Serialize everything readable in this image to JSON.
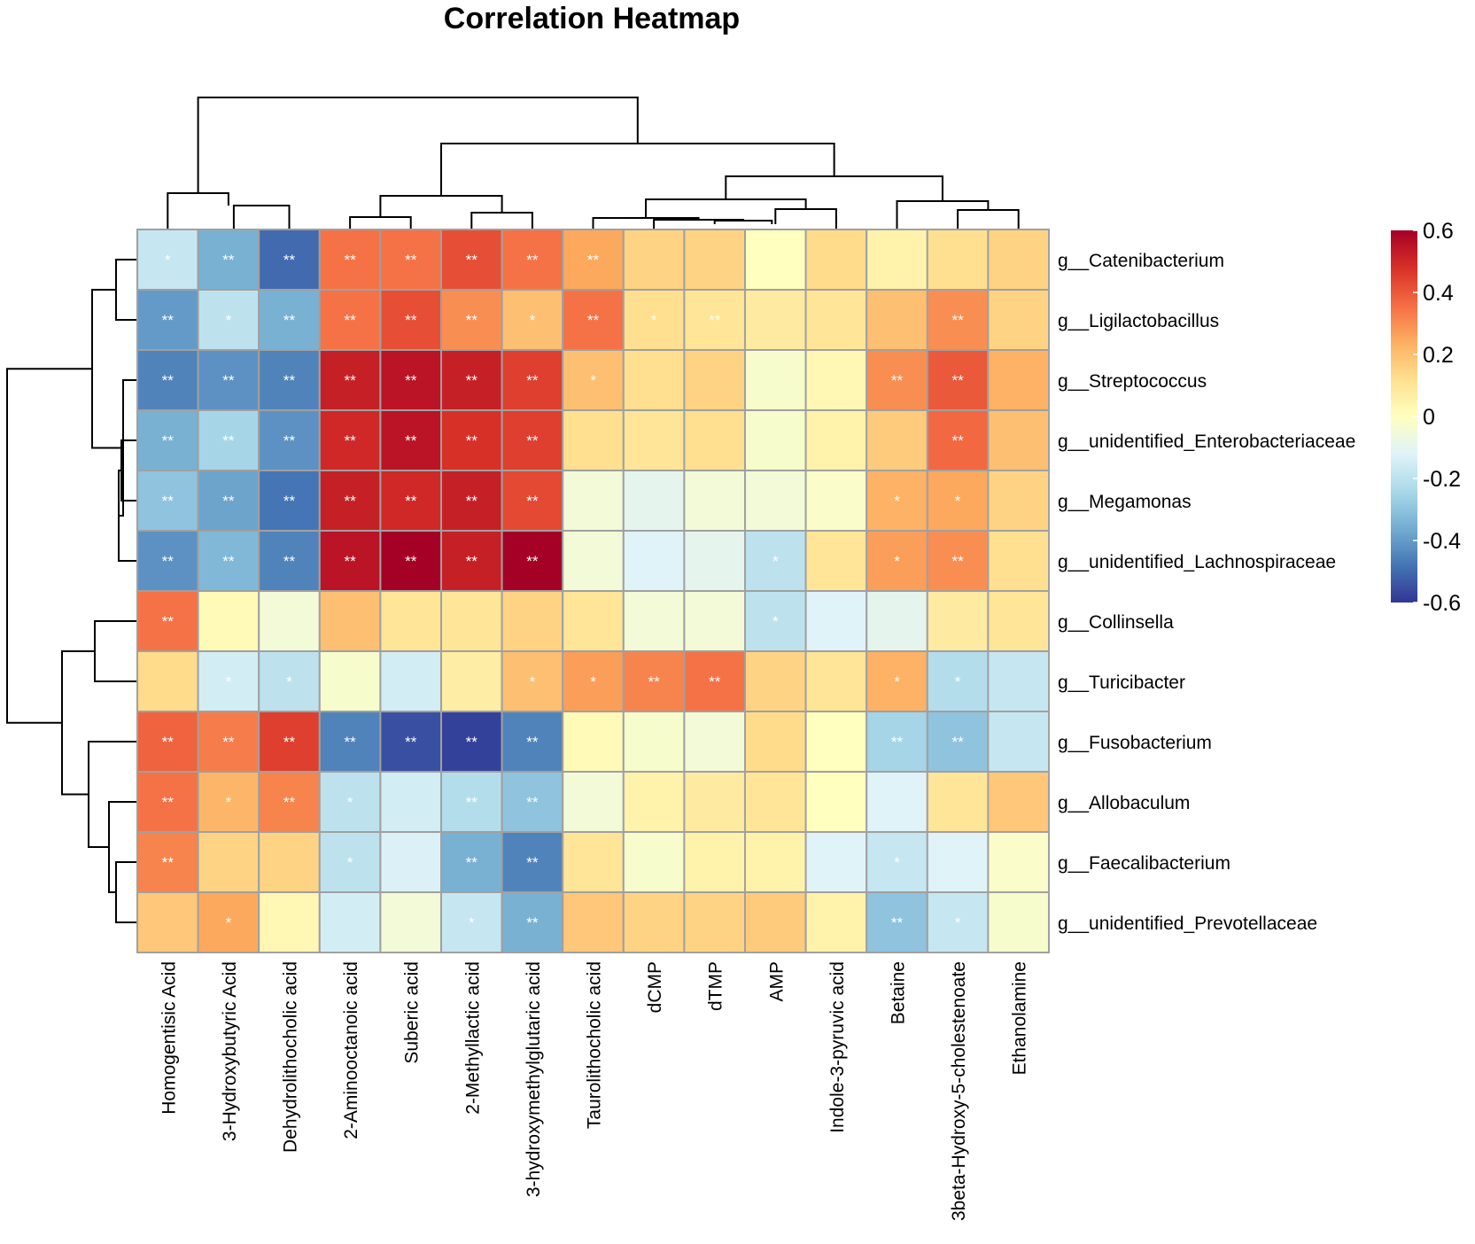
{
  "chart_data": {
    "type": "heatmap",
    "title": "Correlation Heatmap",
    "columns": [
      "Homogentisic Acid",
      "3-Hydroxybutyric Acid",
      "Dehydrolithocholic acid",
      "2-Aminooctanoic acid",
      "Suberic acid",
      "2-Methyllactic acid",
      "3-hydroxymethylglutaric acid",
      "Taurolithocholic acid",
      "dCMP",
      "dTMP",
      "AMP",
      "Indole-3-pyruvic acid",
      "Betaine",
      "3beta-Hydroxy-5-cholestenoate",
      "Ethanolamine"
    ],
    "rows": [
      "g__Catenibacterium",
      "g__Ligilactobacillus",
      "g__Streptococcus",
      "g__unidentified_Enterobacteriaceae",
      "g__Megamonas",
      "g__unidentified_Lachnospiraceae",
      "g__Collinsella",
      "g__Turicibacter",
      "g__Fusobacterium",
      "g__Allobaculum",
      "g__Faecalibacterium",
      "g__unidentified_Prevotellaceae"
    ],
    "values": [
      [
        -0.18,
        -0.35,
        -0.5,
        0.35,
        0.35,
        0.42,
        0.35,
        0.25,
        0.15,
        0.15,
        0.0,
        0.13,
        0.05,
        0.12,
        0.15
      ],
      [
        -0.4,
        -0.2,
        -0.35,
        0.35,
        0.42,
        0.3,
        0.2,
        0.35,
        0.12,
        0.1,
        0.08,
        0.1,
        0.2,
        0.3,
        0.15
      ],
      [
        -0.45,
        -0.42,
        -0.45,
        0.52,
        0.55,
        0.52,
        0.45,
        0.2,
        0.12,
        0.15,
        -0.03,
        0.03,
        0.3,
        0.4,
        0.23
      ],
      [
        -0.35,
        -0.25,
        -0.42,
        0.5,
        0.55,
        0.48,
        0.45,
        0.12,
        0.1,
        0.12,
        -0.03,
        0.05,
        0.17,
        0.37,
        0.2
      ],
      [
        -0.3,
        -0.38,
        -0.48,
        0.52,
        0.5,
        0.52,
        0.43,
        -0.05,
        -0.1,
        -0.05,
        -0.05,
        -0.02,
        0.23,
        0.25,
        0.15
      ],
      [
        -0.42,
        -0.33,
        -0.45,
        0.55,
        0.6,
        0.52,
        0.6,
        -0.05,
        -0.12,
        -0.1,
        -0.2,
        0.1,
        0.27,
        0.3,
        0.12
      ],
      [
        0.35,
        0.02,
        -0.05,
        0.2,
        0.1,
        0.1,
        0.15,
        0.1,
        -0.05,
        -0.05,
        -0.2,
        -0.12,
        -0.1,
        0.08,
        0.1
      ],
      [
        0.13,
        -0.15,
        -0.2,
        -0.03,
        -0.15,
        0.07,
        0.2,
        0.27,
        0.32,
        0.35,
        0.15,
        0.1,
        0.23,
        -0.22,
        -0.18
      ],
      [
        0.38,
        0.33,
        0.45,
        -0.45,
        -0.55,
        -0.58,
        -0.45,
        0.02,
        -0.03,
        -0.05,
        0.13,
        0.0,
        -0.25,
        -0.3,
        -0.18
      ],
      [
        0.35,
        0.22,
        0.32,
        -0.2,
        -0.15,
        -0.22,
        -0.3,
        -0.05,
        0.05,
        0.08,
        0.1,
        0.0,
        -0.12,
        0.1,
        0.18
      ],
      [
        0.32,
        0.15,
        0.15,
        -0.2,
        -0.13,
        -0.35,
        -0.45,
        0.1,
        -0.03,
        0.05,
        0.05,
        -0.12,
        -0.18,
        -0.12,
        -0.02
      ],
      [
        0.18,
        0.25,
        0.03,
        -0.15,
        -0.05,
        -0.18,
        -0.35,
        0.18,
        0.15,
        0.15,
        0.17,
        0.05,
        -0.3,
        -0.18,
        -0.03
      ]
    ],
    "significance": [
      [
        "*",
        "**",
        "**",
        "**",
        "**",
        "**",
        "**",
        "**",
        "",
        "",
        "",
        "",
        "",
        "",
        ""
      ],
      [
        "**",
        "*",
        "**",
        "**",
        "**",
        "**",
        "*",
        "**",
        "*",
        "**",
        "",
        "",
        "",
        "**",
        ""
      ],
      [
        "**",
        "**",
        "**",
        "**",
        "**",
        "**",
        "**",
        "*",
        "",
        "",
        "",
        "",
        "**",
        "**",
        ""
      ],
      [
        "**",
        "**",
        "**",
        "**",
        "**",
        "**",
        "**",
        "",
        "",
        "",
        "",
        "",
        "",
        "**",
        ""
      ],
      [
        "**",
        "**",
        "**",
        "**",
        "**",
        "**",
        "**",
        "",
        "",
        "",
        "",
        "",
        "*",
        "*",
        ""
      ],
      [
        "**",
        "**",
        "**",
        "**",
        "**",
        "**",
        "**",
        "",
        "",
        "",
        "*",
        "",
        "*",
        "**",
        ""
      ],
      [
        "**",
        "",
        "",
        "",
        "",
        "",
        "",
        "",
        "",
        "",
        "*",
        "",
        "",
        "",
        ""
      ],
      [
        "",
        "*",
        "*",
        "",
        "",
        "",
        "*",
        "*",
        "**",
        "**",
        "",
        "",
        "*",
        "*",
        ""
      ],
      [
        "**",
        "**",
        "**",
        "**",
        "**",
        "**",
        "**",
        "",
        "",
        "",
        "",
        "",
        "**",
        "**",
        ""
      ],
      [
        "**",
        "*",
        "**",
        "*",
        "",
        "**",
        "**",
        "",
        "",
        "",
        "",
        "",
        "",
        "",
        ""
      ],
      [
        "**",
        "",
        "",
        "*",
        "",
        "**",
        "**",
        "",
        "",
        "",
        "",
        "",
        "*",
        "",
        ""
      ],
      [
        "",
        "*",
        "",
        "",
        "",
        "*",
        "**",
        "",
        "",
        "",
        "",
        "",
        "**",
        "*",
        ""
      ]
    ],
    "colorbar": {
      "min": -0.6,
      "max": 0.6,
      "ticks": [
        "0.6",
        "0.4",
        "0.2",
        "0",
        "-0.2",
        "-0.4",
        "-0.6"
      ],
      "colors": [
        "#313695",
        "#4575b4",
        "#74add1",
        "#abd9e9",
        "#e0f3f8",
        "#ffffbf",
        "#fee090",
        "#fdae61",
        "#f46d43",
        "#d73027",
        "#a50026"
      ]
    },
    "cell_border_color": "#a0a0a0"
  }
}
